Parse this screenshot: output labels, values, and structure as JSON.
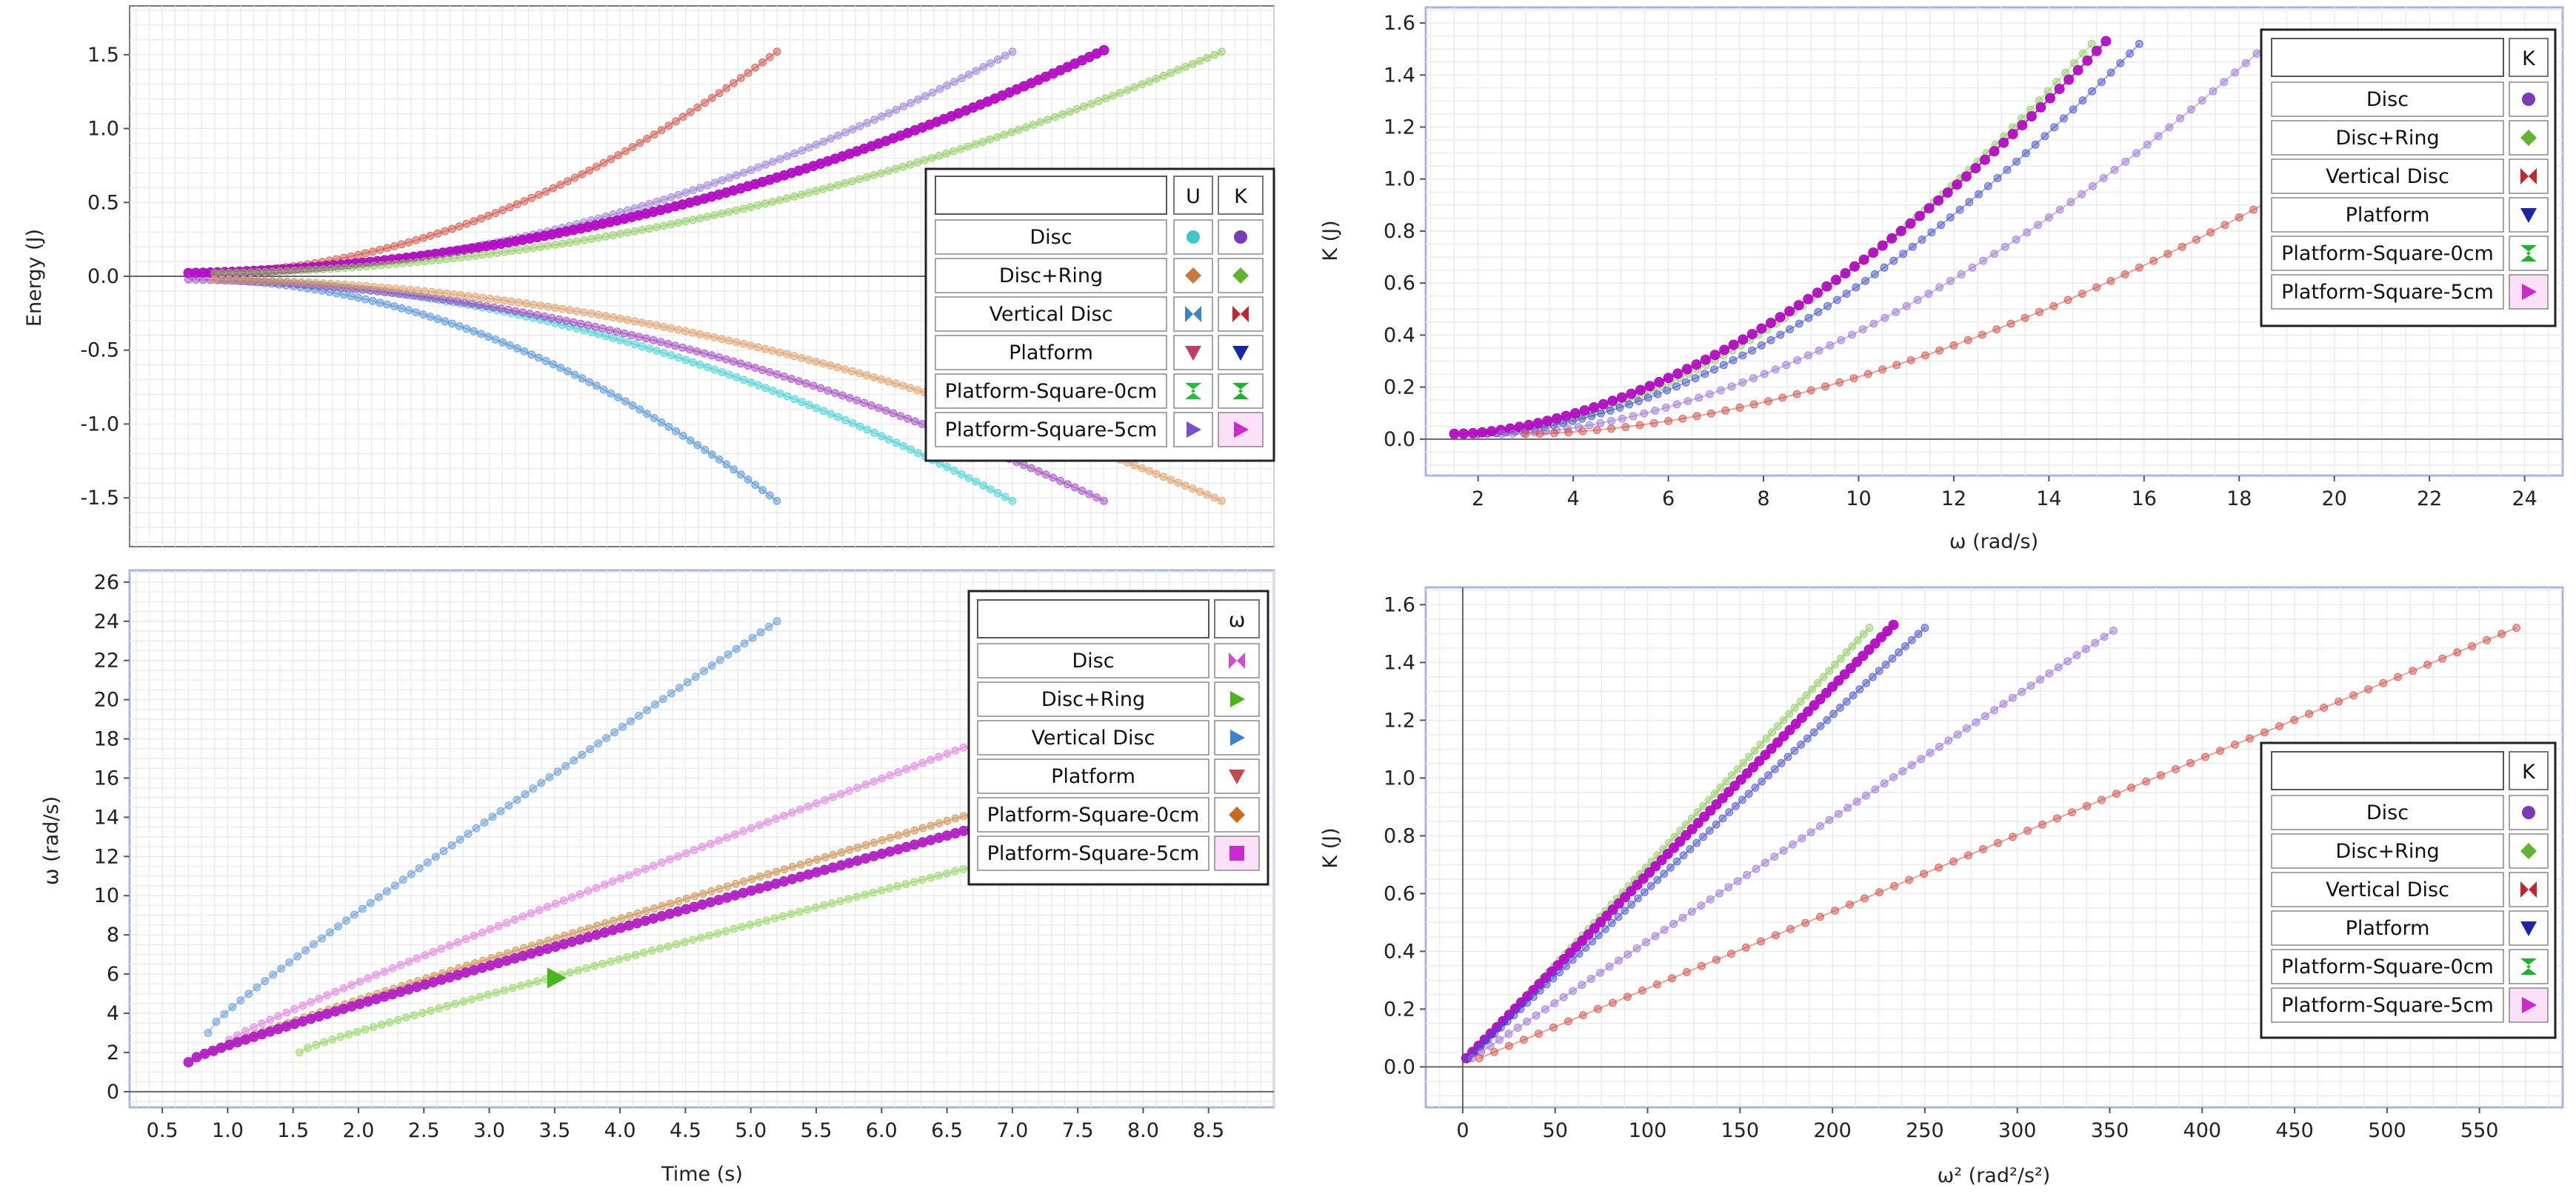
{
  "colors": {
    "grid": "#e2e2e2",
    "frame": "#a9b4e3",
    "axis": "#777777",
    "disc_u": "#3ec8c8",
    "disc_k": "#7b3bb8",
    "discring_u": "#c97a3b",
    "discring_k": "#62b531",
    "vdisc_u": "#3c84c9",
    "vdisc_k": "#c1272d",
    "platform_u": "#c43a6c",
    "platform_k": "#1826a8",
    "psq0_u": "#1fbf40",
    "psq0_k": "#16b52a",
    "psq5_u": "#7a4fd0",
    "psq5_k": "#cc2ad0"
  },
  "chart_data": [
    {
      "id": "energy-vs-time",
      "type": "scatter",
      "xlabel": "",
      "ylabel": "Energy (J)",
      "xlim": [
        0.25,
        9.0
      ],
      "ylim": [
        -1.83,
        1.83
      ],
      "yticks": [
        "-1.5",
        "-1.0",
        "-0.5",
        "0.0",
        "0.5",
        "1.0",
        "1.5"
      ],
      "legend": {
        "placement": "right",
        "header": [
          "",
          "U",
          "K"
        ],
        "rows": [
          {
            "label": "Disc",
            "u_icon": "circle-icon",
            "k_icon": "circle-icon"
          },
          {
            "label": "Disc+Ring",
            "u_icon": "diamond-icon",
            "k_icon": "diamond-icon"
          },
          {
            "label": "Vertical Disc",
            "u_icon": "bowtie-icon",
            "k_icon": "bowtie-icon"
          },
          {
            "label": "Platform",
            "u_icon": "triangle-down-icon",
            "k_icon": "triangle-down-icon"
          },
          {
            "label": "Platform-Square-0cm",
            "u_icon": "hourglass-icon",
            "k_icon": "hourglass-icon"
          },
          {
            "label": "Platform-Square-5cm",
            "u_icon": "triangle-right-icon",
            "k_icon": "triangle-right-icon"
          }
        ]
      },
      "series": [
        {
          "key": "vdisc_k",
          "t_start": 0.95,
          "t_end": 5.2,
          "v_start": 0.02,
          "v_end": 1.52,
          "power": 2.0
        },
        {
          "key": "psq5_u_light",
          "t_start": 0.95,
          "t_end": 7.0,
          "v_start": 0.02,
          "v_end": 1.52,
          "power": 2.0
        },
        {
          "key": "psq5_k",
          "t_start": 0.7,
          "t_end": 7.7,
          "v_start": 0.02,
          "v_end": 1.53,
          "power": 2.0
        },
        {
          "key": "discring_k",
          "t_start": 0.9,
          "t_end": 8.6,
          "v_start": 0.02,
          "v_end": 1.52,
          "power": 2.0
        },
        {
          "key": "vdisc_u",
          "t_start": 0.95,
          "t_end": 5.2,
          "v_start": -0.02,
          "v_end": -1.52,
          "power": 2.0
        },
        {
          "key": "disc_u",
          "t_start": 0.95,
          "t_end": 7.0,
          "v_start": -0.02,
          "v_end": -1.52,
          "power": 2.0
        },
        {
          "key": "psq5_u",
          "t_start": 0.7,
          "t_end": 7.7,
          "v_start": -0.02,
          "v_end": -1.52,
          "power": 2.0
        },
        {
          "key": "discring_u",
          "t_start": 0.9,
          "t_end": 8.6,
          "v_start": -0.02,
          "v_end": -1.52,
          "power": 2.0
        }
      ]
    },
    {
      "id": "kinetic-vs-omega",
      "type": "scatter",
      "xlabel": "ω (rad/s)",
      "ylabel": "K (J)",
      "xlim": [
        0.9,
        24.8
      ],
      "ylim": [
        -0.14,
        1.66
      ],
      "xticks": [
        "2",
        "4",
        "6",
        "8",
        "10",
        "12",
        "14",
        "16",
        "18",
        "20",
        "22",
        "24"
      ],
      "yticks": [
        "0.0",
        "0.2",
        "0.4",
        "0.6",
        "0.8",
        "1.0",
        "1.2",
        "1.4",
        "1.6"
      ],
      "legend": {
        "placement": "top-right",
        "header": [
          "",
          "K"
        ],
        "rows": [
          {
            "label": "Disc",
            "icon": "circle-icon"
          },
          {
            "label": "Disc+Ring",
            "icon": "diamond-icon"
          },
          {
            "label": "Vertical Disc",
            "icon": "bowtie-icon"
          },
          {
            "label": "Platform",
            "icon": "triangle-down-icon"
          },
          {
            "label": "Platform-Square-0cm",
            "icon": "hourglass-icon"
          },
          {
            "label": "Platform-Square-5cm",
            "icon": "triangle-right-icon"
          }
        ]
      },
      "series": [
        {
          "key": "discring_k",
          "x_start": 2.0,
          "x_end": 14.9,
          "y_end": 1.52
        },
        {
          "key": "platform_k",
          "x_start": 2.0,
          "x_end": 15.9,
          "y_end": 1.52
        },
        {
          "key": "psq5_k",
          "x_start": 1.5,
          "x_end": 15.2,
          "y_end": 1.53
        },
        {
          "key": "disc_k",
          "x_start": 2.5,
          "x_end": 18.6,
          "y_end": 1.52
        },
        {
          "key": "vdisc_k",
          "x_start": 3.0,
          "x_end": 24.0,
          "y_end": 1.52
        }
      ]
    },
    {
      "id": "omega-vs-time",
      "type": "scatter",
      "xlabel": "Time (s)",
      "ylabel": "ω (rad/s)",
      "xlim": [
        0.25,
        9.0
      ],
      "ylim": [
        -0.8,
        26.6
      ],
      "xticks": [
        "0.5",
        "1.0",
        "1.5",
        "2.0",
        "2.5",
        "3.0",
        "3.5",
        "4.0",
        "4.5",
        "5.0",
        "5.5",
        "6.0",
        "6.5",
        "7.0",
        "7.5",
        "8.0",
        "8.5"
      ],
      "yticks": [
        "0",
        "2",
        "4",
        "6",
        "8",
        "10",
        "12",
        "14",
        "16",
        "18",
        "20",
        "22",
        "24",
        "26"
      ],
      "legend": {
        "placement": "right",
        "header": [
          "",
          "ω"
        ],
        "rows": [
          {
            "label": "Disc",
            "icon": "bowtie-icon"
          },
          {
            "label": "Disc+Ring",
            "icon": "triangle-right-icon"
          },
          {
            "label": "Vertical Disc",
            "icon": "triangle-right-icon"
          },
          {
            "label": "Platform",
            "icon": "triangle-down-icon"
          },
          {
            "label": "Platform-Square-0cm",
            "icon": "diamond-icon"
          },
          {
            "label": "Platform-Square-5cm",
            "icon": "square-icon"
          }
        ]
      },
      "series": [
        {
          "key": "vdisc_w",
          "t_start": 0.85,
          "t_end": 5.2,
          "v_start": 3.0,
          "v_end": 24.0
        },
        {
          "key": "disc_w",
          "t_start": 0.95,
          "t_end": 7.0,
          "v_start": 2.3,
          "v_end": 18.5
        },
        {
          "key": "psq0_w",
          "t_start": 0.9,
          "t_end": 7.0,
          "v_start": 2.0,
          "v_end": 14.8
        },
        {
          "key": "psq5_w",
          "t_start": 0.7,
          "t_end": 7.0,
          "v_start": 1.5,
          "v_end": 14.0
        },
        {
          "key": "discring_w",
          "t_start": 1.55,
          "t_end": 7.0,
          "v_start": 2.0,
          "v_end": 12.0
        }
      ],
      "marker": {
        "key": "discring_w",
        "t": 3.5,
        "v": 5.8
      }
    },
    {
      "id": "kinetic-vs-omega-squared",
      "type": "scatter",
      "xlabel": "ω² (rad²/s²)",
      "ylabel": "K (J)",
      "xlim": [
        -20,
        595
      ],
      "ylim": [
        -0.14,
        1.66
      ],
      "xticks": [
        "0",
        "50",
        "100",
        "150",
        "200",
        "250",
        "300",
        "350",
        "400",
        "450",
        "500",
        "550"
      ],
      "yticks": [
        "0.0",
        "0.2",
        "0.4",
        "0.6",
        "0.8",
        "1.0",
        "1.2",
        "1.4",
        "1.6"
      ],
      "legend": {
        "placement": "right",
        "header": [
          "",
          "K"
        ],
        "rows": [
          {
            "label": "Disc",
            "icon": "circle-icon"
          },
          {
            "label": "Disc+Ring",
            "icon": "diamond-icon"
          },
          {
            "label": "Vertical Disc",
            "icon": "bowtie-icon"
          },
          {
            "label": "Platform",
            "icon": "triangle-down-icon"
          },
          {
            "label": "Platform-Square-0cm",
            "icon": "hourglass-icon"
          },
          {
            "label": "Platform-Square-5cm",
            "icon": "triangle-right-icon"
          }
        ]
      },
      "series": [
        {
          "key": "discring_k",
          "x_start": 3,
          "x_end": 220,
          "y_end": 1.52
        },
        {
          "key": "psq5_k",
          "x_start": 2,
          "x_end": 233,
          "y_end": 1.53
        },
        {
          "key": "platform_k",
          "x_start": 3,
          "x_end": 250,
          "y_end": 1.52
        },
        {
          "key": "disc_k",
          "x_start": 5,
          "x_end": 352,
          "y_end": 1.51
        },
        {
          "key": "vdisc_k",
          "x_start": 9,
          "x_end": 570,
          "y_end": 1.52
        }
      ]
    }
  ]
}
